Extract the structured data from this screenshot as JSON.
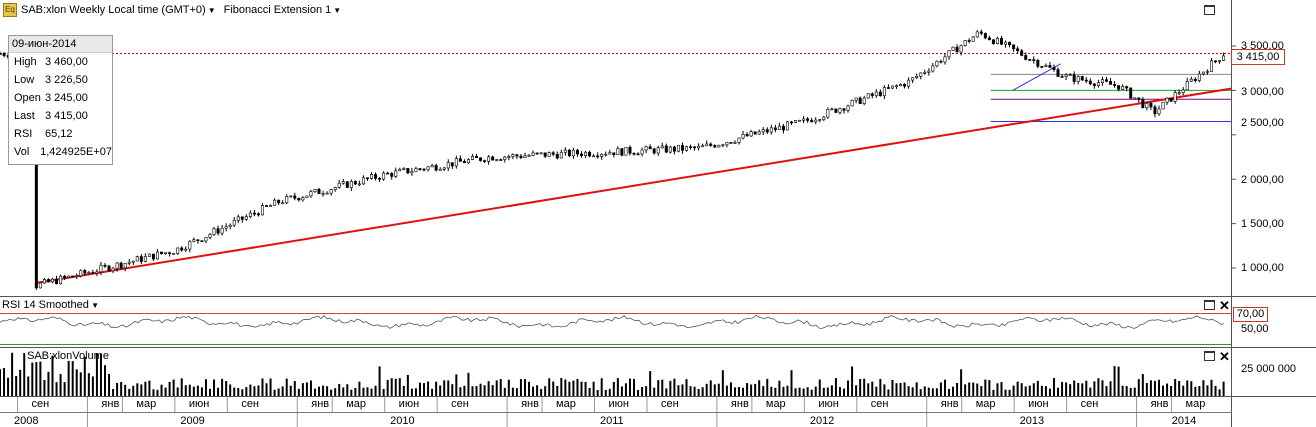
{
  "header": {
    "symbol_title": "SAB:xlon Weekly Local time (GMT+0)",
    "study_title": "Fibonacci Extension 1"
  },
  "info_box": {
    "date": "09-июн-2014",
    "rows": [
      {
        "k": "High",
        "v": "3 460,00"
      },
      {
        "k": "Low",
        "v": "3 226,50"
      },
      {
        "k": "Open",
        "v": "3 245,00"
      },
      {
        "k": "Last",
        "v": "3 415,00"
      },
      {
        "k": "RSI",
        "v": "65,12"
      },
      {
        "k": "Vol",
        "v": "1,424925E+07"
      }
    ]
  },
  "price_axis": {
    "ticks": [
      "3 500,00",
      "3 000,00",
      "2 500,00",
      "2 000,00",
      "1 500,00",
      "1 000,00"
    ],
    "last_label": "3 415,00"
  },
  "rsi_panel": {
    "title": "RSI 14 Smoothed",
    "upper_label": "70,00",
    "mid_label": "50,00"
  },
  "volume_panel": {
    "title": "SAB:xlonVolume",
    "tick": "25 000 000"
  },
  "time_axis": {
    "months": [
      {
        "label": "сен"
      },
      {
        "label": "янв"
      },
      {
        "label": "мар"
      },
      {
        "label": "июн"
      },
      {
        "label": "сен"
      },
      {
        "label": "янв"
      },
      {
        "label": "мар"
      },
      {
        "label": "июн"
      },
      {
        "label": "сен"
      },
      {
        "label": "янв"
      },
      {
        "label": "мар"
      },
      {
        "label": "июн"
      },
      {
        "label": "сен"
      },
      {
        "label": "янв"
      },
      {
        "label": "мар"
      },
      {
        "label": "июн"
      },
      {
        "label": "сен"
      },
      {
        "label": "янв"
      },
      {
        "label": "мар"
      },
      {
        "label": "июн"
      },
      {
        "label": "сен"
      },
      {
        "label": "янв"
      },
      {
        "label": "мар"
      }
    ],
    "years": [
      "2008",
      "2009",
      "2010",
      "2011",
      "2012",
      "2013",
      "2014"
    ]
  },
  "colors": {
    "trendline": "#e01010",
    "hline": "#c00000",
    "fib_green": "#20a020",
    "fib_purple": "#800080",
    "fib_blue": "#3030e0",
    "rsi_upper": "#d04040",
    "rsi_lower": "#20a020"
  },
  "chart_data": {
    "type": "candlestick",
    "period": "weekly",
    "x_range": [
      "2008-08",
      "2014-06"
    ],
    "ylim": [
      800,
      3650
    ],
    "key_points": [
      {
        "date": "2008-10",
        "close": 800
      },
      {
        "date": "2009-06",
        "close": 1200
      },
      {
        "date": "2009-12",
        "close": 1750
      },
      {
        "date": "2010-06",
        "close": 2050
      },
      {
        "date": "2010-12",
        "close": 2250
      },
      {
        "date": "2011-06",
        "close": 2300
      },
      {
        "date": "2011-12",
        "close": 2350
      },
      {
        "date": "2012-06",
        "close": 2650
      },
      {
        "date": "2012-12",
        "close": 3100
      },
      {
        "date": "2013-04",
        "close": 3650
      },
      {
        "date": "2013-09",
        "close": 3150
      },
      {
        "date": "2013-12",
        "close": 3050
      },
      {
        "date": "2014-02",
        "close": 2750
      },
      {
        "date": "2014-06",
        "close": 3415
      }
    ],
    "horizontal_line": 3415,
    "trendline": [
      {
        "date": "2008-10",
        "price": 830
      },
      {
        "date": "2014-06",
        "price": 3020
      }
    ],
    "fibonacci_levels": [
      3180,
      3000,
      2900,
      2650
    ],
    "rsi": {
      "upper": 70,
      "lower": 30,
      "last": 65.12
    },
    "volume_last": 14249250
  }
}
